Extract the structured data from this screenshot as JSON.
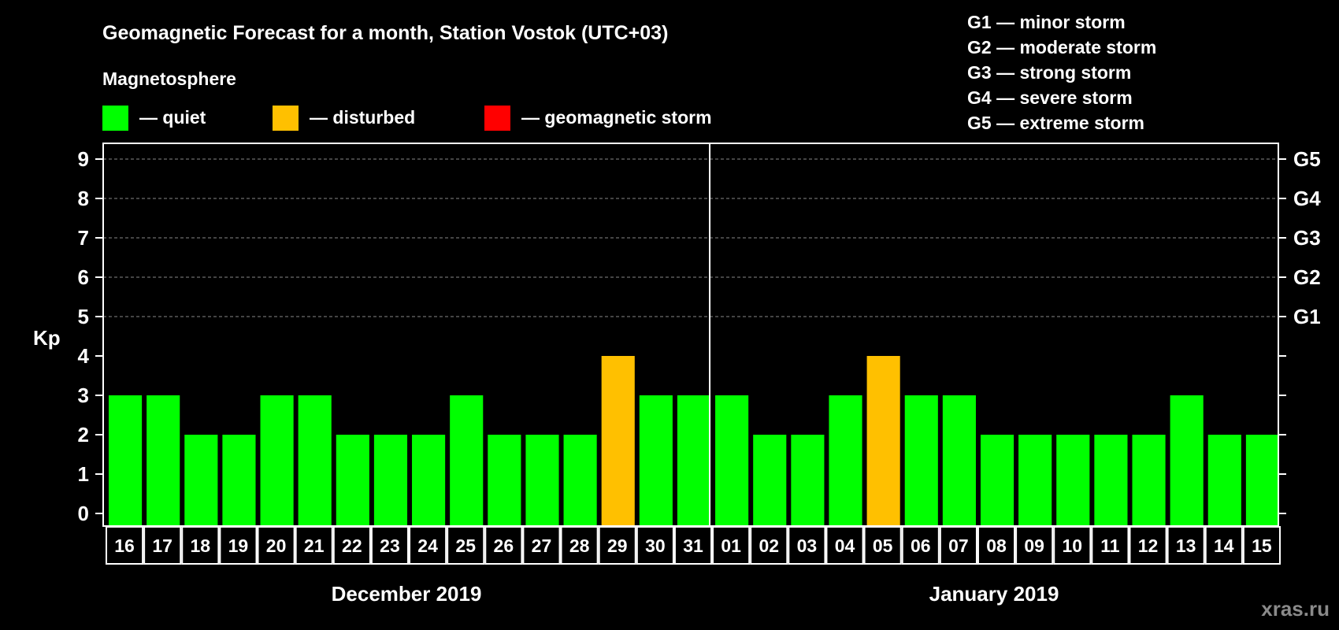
{
  "chart_data": {
    "type": "bar",
    "title": "Geomagnetic Forecast for a month, Station Vostok (UTC+03)",
    "subtitle": "Magnetosphere",
    "ylabel": "Kp",
    "ylim": [
      0,
      9
    ],
    "yticks": [
      0,
      1,
      2,
      3,
      4,
      5,
      6,
      7,
      8,
      9
    ],
    "grid": "dashed horizontal at 5-9",
    "legend": [
      {
        "label": "— quiet",
        "color": "#00ff00"
      },
      {
        "label": "— disturbed",
        "color": "#ffc000"
      },
      {
        "label": "— geomagnetic storm",
        "color": "#ff0000"
      }
    ],
    "storm_scale": [
      "G1 — minor storm",
      "G2 — moderate storm",
      "G3 — strong storm",
      "G4 — severe storm",
      "G5 — extreme storm"
    ],
    "right_axis_labels": [
      {
        "kp": 5,
        "label": "G1"
      },
      {
        "kp": 6,
        "label": "G2"
      },
      {
        "kp": 7,
        "label": "G3"
      },
      {
        "kp": 8,
        "label": "G4"
      },
      {
        "kp": 9,
        "label": "G5"
      }
    ],
    "months": [
      {
        "label": "December 2019",
        "days": [
          "16",
          "17",
          "18",
          "19",
          "20",
          "21",
          "22",
          "23",
          "24",
          "25",
          "26",
          "27",
          "28",
          "29",
          "30",
          "31"
        ],
        "values": [
          3,
          3,
          2,
          2,
          3,
          3,
          2,
          2,
          2,
          3,
          2,
          2,
          2,
          4,
          3,
          3
        ]
      },
      {
        "label": "January 2019",
        "days": [
          "01",
          "02",
          "03",
          "04",
          "05",
          "06",
          "07",
          "08",
          "09",
          "10",
          "11",
          "12",
          "13",
          "14",
          "15"
        ],
        "values": [
          3,
          2,
          2,
          3,
          4,
          3,
          3,
          2,
          2,
          2,
          2,
          2,
          3,
          2,
          2
        ]
      }
    ]
  },
  "watermark": "xras.ru"
}
